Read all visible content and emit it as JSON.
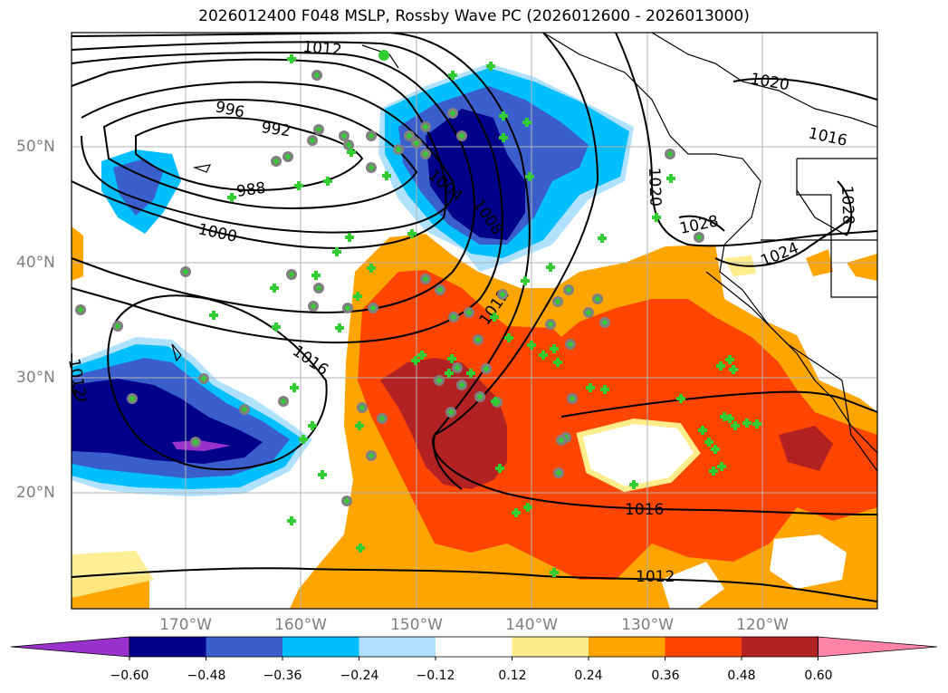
{
  "title": "2026012400 F048 MSLP, Rossby Wave PC (2026012600 - 2026013000)",
  "map": {
    "latitude_labels": [
      "50°N",
      "40°N",
      "30°N",
      "20°N"
    ],
    "longitude_labels": [
      "170°W",
      "160°W",
      "150°W",
      "140°W",
      "130°W",
      "120°W"
    ],
    "isobar_labels": [
      "996",
      "992",
      "988",
      "1000",
      "1004",
      "1008",
      "1012",
      "1012",
      "1016",
      "1016",
      "1012",
      "1016",
      "1020",
      "1020",
      "1028",
      "1024",
      "1028",
      "1016",
      "1012"
    ]
  },
  "colorbar": {
    "tick_labels": [
      "−0.60",
      "−0.48",
      "−0.36",
      "−0.24",
      "−0.12",
      "0.12",
      "0.24",
      "0.36",
      "0.48",
      "0.60"
    ],
    "colors": [
      "#9932cc",
      "#00008b",
      "#3a5fcd",
      "#00bfff",
      "#b0e2ff",
      "#ffffff",
      "#ffec8b",
      "#ffa500",
      "#ff4500",
      "#b22222",
      "#ff83a8"
    ]
  },
  "colors": {
    "isobar": "#000000",
    "coast": "#000000",
    "grid": "#b3b3b3",
    "marker_circle": "#808080",
    "marker_cross": "#32cd32"
  }
}
